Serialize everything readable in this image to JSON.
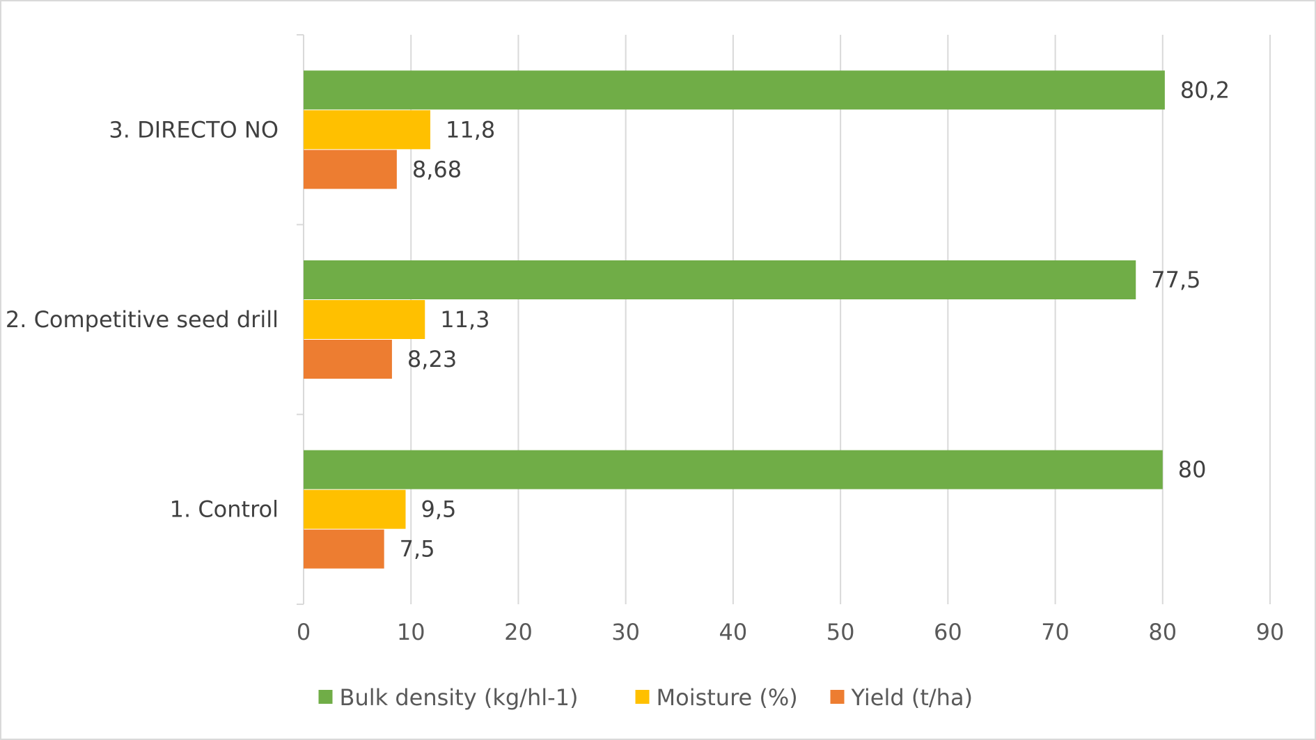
{
  "chart_data": {
    "type": "bar",
    "orientation": "horizontal",
    "title": "",
    "xlabel": "",
    "ylabel": "",
    "categories": [
      "1. Control",
      "2. Competitive seed drill",
      "3. DIRECTO NO"
    ],
    "series": [
      {
        "name": "Yield (t/ha)",
        "color": "#ED7D31",
        "values": [
          7.5,
          8.23,
          8.68
        ],
        "labels": [
          "7,5",
          "8,23",
          "8,68"
        ]
      },
      {
        "name": "Moisture (%)",
        "color": "#FFC000",
        "values": [
          9.5,
          11.3,
          11.8
        ],
        "labels": [
          "9,5",
          "11,3",
          "11,8"
        ]
      },
      {
        "name": "Bulk density (kg/hl-1)",
        "color": "#70AD47",
        "values": [
          80,
          77.5,
          80.2
        ],
        "labels": [
          "80",
          "77,5",
          "80,2"
        ]
      }
    ],
    "xlim": [
      0,
      90
    ],
    "xticks": [
      "0",
      "10",
      "20",
      "30",
      "40",
      "50",
      "60",
      "70",
      "80",
      "90"
    ],
    "grid": true,
    "legend_position": "bottom",
    "legend_order": [
      "Bulk density (kg/hl-1)",
      "Moisture (%)",
      "Yield (t/ha)"
    ]
  }
}
